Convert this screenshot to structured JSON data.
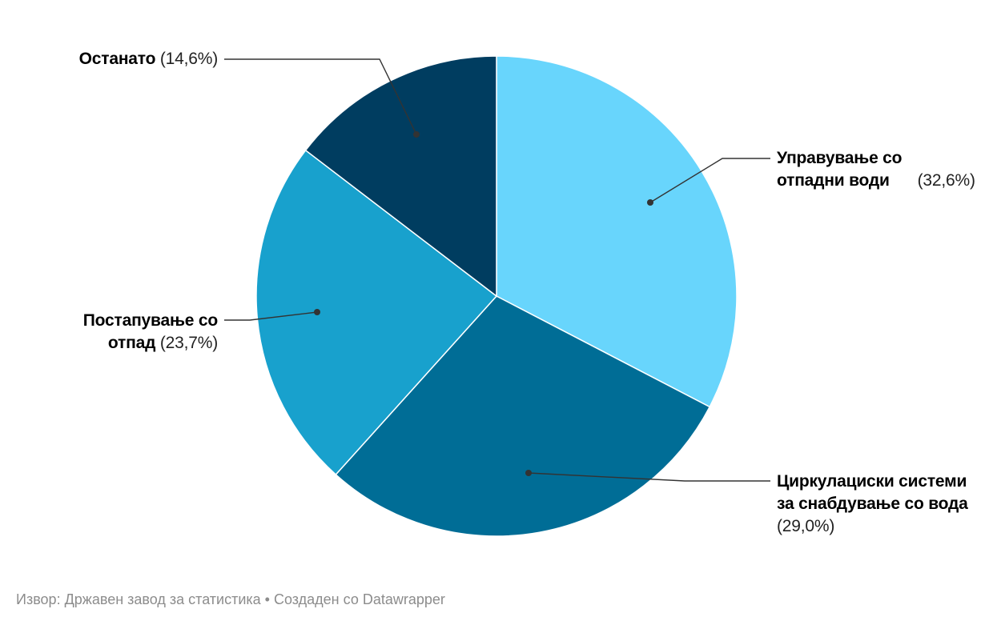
{
  "chart_data": {
    "type": "pie",
    "start_angle_deg": 0,
    "direction": "clockwise",
    "slices": [
      {
        "label": "Управување со отпадни води",
        "value": 32.6,
        "value_label": "(32,6%)",
        "color": "#68d5fc"
      },
      {
        "label": "Циркулациски системи за снабдување со вода",
        "value": 29.0,
        "value_label": "(29,0%)",
        "color": "#006d96"
      },
      {
        "label": "Постапување со отпад",
        "value": 23.7,
        "value_label": "(23,7%)",
        "color": "#18a1cd"
      },
      {
        "label": "Останато",
        "value": 14.6,
        "value_label": "(14,6%)",
        "color": "#003d60"
      }
    ]
  },
  "footer": {
    "text": "Извор: Државен завод за статистика • Создаден со Datawrapper"
  }
}
